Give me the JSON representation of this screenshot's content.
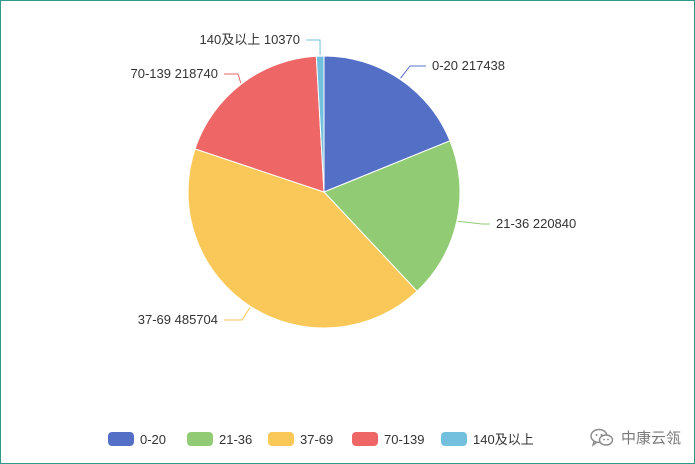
{
  "chart_data": {
    "type": "pie",
    "title": "",
    "categories": [
      "0-20",
      "21-36",
      "37-69",
      "70-139",
      "140及以上"
    ],
    "values": [
      217438,
      220840,
      485704,
      218740,
      10370
    ],
    "colors": [
      "#5470c6",
      "#91cc75",
      "#fac858",
      "#ee6666",
      "#73c0de"
    ],
    "label_texts": [
      "0-20   217438",
      "21-36   220840",
      "37-69   485704",
      "70-139   218740",
      "140及以上   10370"
    ],
    "legend": {
      "position": "bottom",
      "items": [
        "0-20",
        "21-36",
        "37-69",
        "70-139",
        "140及以上"
      ]
    }
  },
  "watermark": {
    "text": "中康云瓴",
    "icon": "wechat-icon"
  }
}
